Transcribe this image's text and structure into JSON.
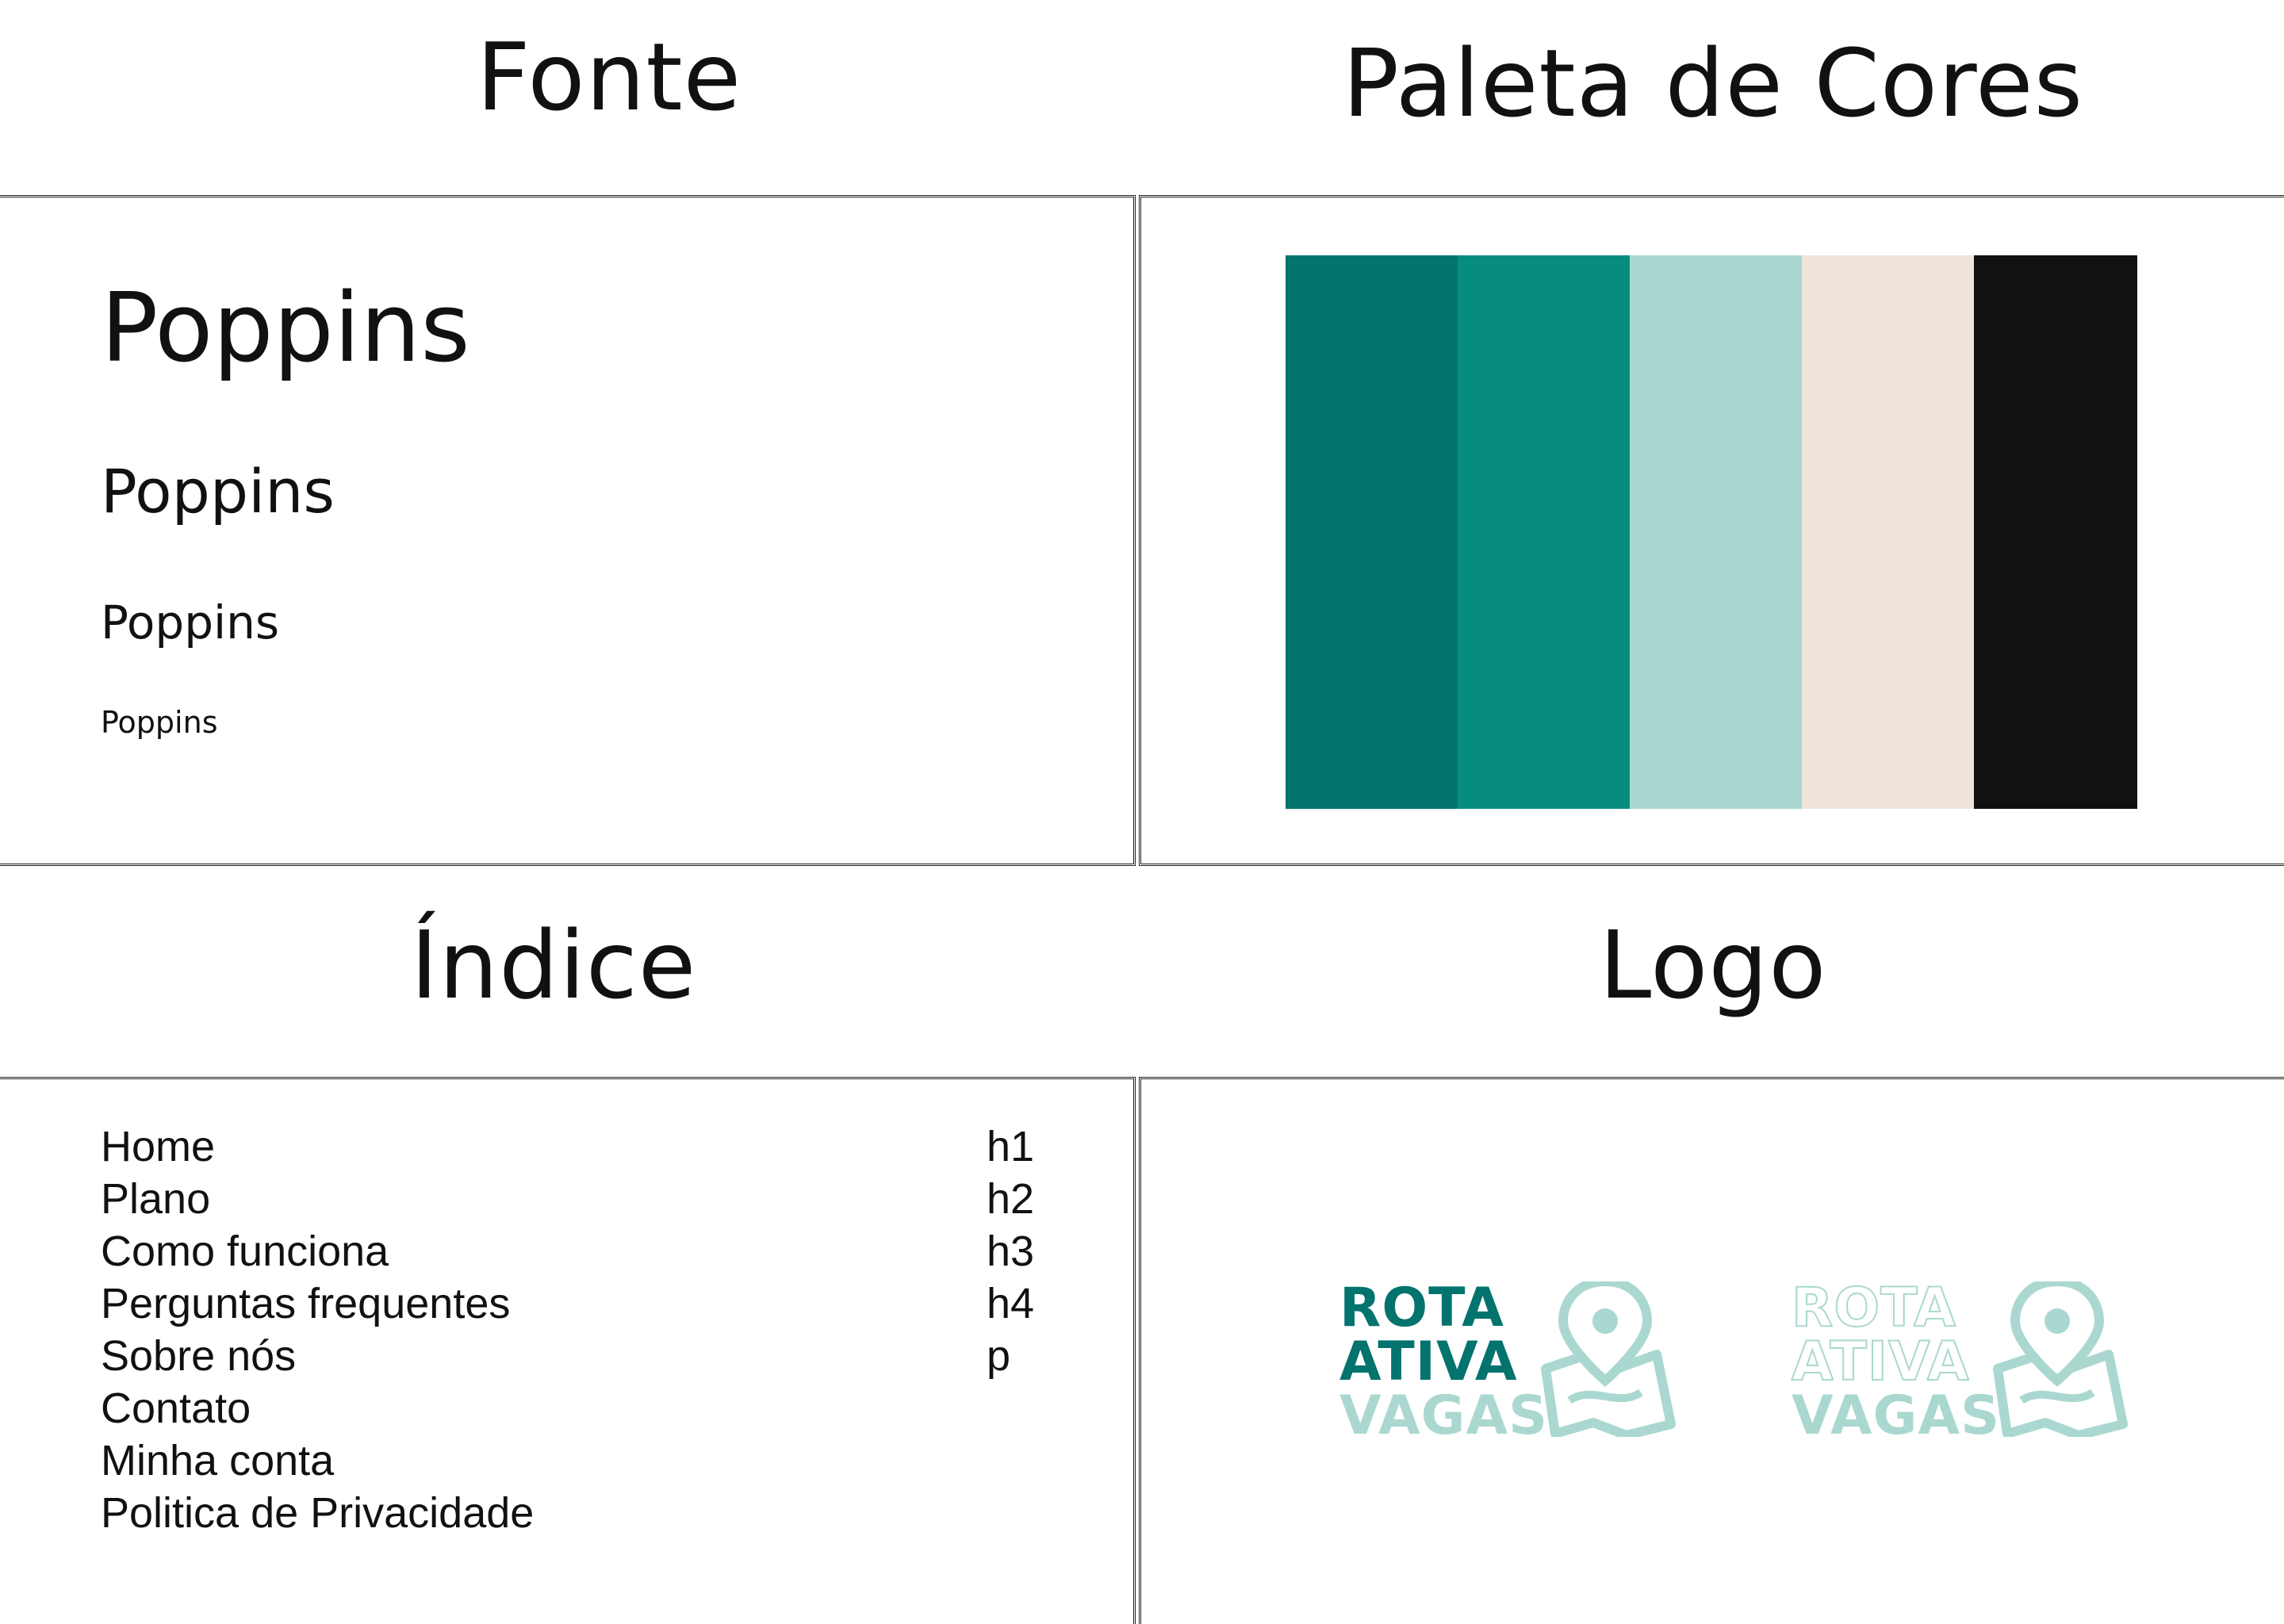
{
  "headings": {
    "fonte": "Fonte",
    "paleta": "Paleta de Cores",
    "indice": "Índice",
    "logo": "Logo"
  },
  "font_samples": [
    "Poppins",
    "Poppins",
    "Poppins",
    "Poppins"
  ],
  "palette": [
    "#02756f",
    "#068d80",
    "#aad8d0",
    "#efe5dc",
    "#111111"
  ],
  "index": {
    "items": [
      "Home",
      "Plano",
      "Como funciona",
      "Perguntas frequentes",
      "Sobre nós",
      "Contato",
      "Minha conta",
      "Politica de Privacidade"
    ],
    "tags": [
      "h1",
      "h2",
      "h3",
      "h4",
      "p"
    ]
  },
  "logos": {
    "line1": "ROTA",
    "line2": "ATIVA",
    "line3": "VAGAS",
    "icon": "map-pin-icon",
    "colors": {
      "dark": "#03736e",
      "light": "#aad8d0"
    }
  }
}
